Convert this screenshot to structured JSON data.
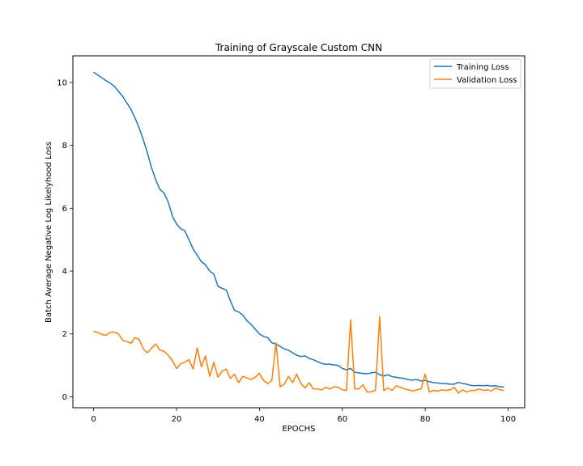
{
  "chart_data": {
    "type": "line",
    "title": "Training of Grayscale Custom CNN",
    "xlabel": "EPOCHS",
    "ylabel": "Batch Average Negative Log Likelyhood Loss",
    "xlim": [
      -5,
      104
    ],
    "ylim": [
      -0.35,
      10.85
    ],
    "xticks": [
      0,
      20,
      40,
      60,
      80,
      100
    ],
    "yticks": [
      0,
      2,
      4,
      6,
      8,
      10
    ],
    "grid": false,
    "legend_position": "top-right",
    "series": [
      {
        "name": "Training Loss",
        "color": "#1f77b4",
        "x": [
          0,
          1,
          2,
          3,
          4,
          5,
          6,
          7,
          8,
          9,
          10,
          11,
          12,
          13,
          14,
          15,
          16,
          17,
          18,
          19,
          20,
          21,
          22,
          23,
          24,
          25,
          26,
          27,
          28,
          29,
          30,
          31,
          32,
          33,
          34,
          35,
          36,
          37,
          38,
          39,
          40,
          41,
          42,
          43,
          44,
          45,
          46,
          47,
          48,
          49,
          50,
          51,
          52,
          53,
          54,
          55,
          56,
          57,
          58,
          59,
          60,
          61,
          62,
          63,
          64,
          65,
          66,
          67,
          68,
          69,
          70,
          71,
          72,
          73,
          74,
          75,
          76,
          77,
          78,
          79,
          80,
          81,
          82,
          83,
          84,
          85,
          86,
          87,
          88,
          89,
          90,
          91,
          92,
          93,
          94,
          95,
          96,
          97,
          98,
          99
        ],
        "values": [
          10.33,
          10.24,
          10.15,
          10.06,
          9.98,
          9.88,
          9.72,
          9.56,
          9.35,
          9.15,
          8.87,
          8.55,
          8.18,
          7.75,
          7.28,
          6.9,
          6.6,
          6.48,
          6.2,
          5.75,
          5.5,
          5.35,
          5.28,
          5.0,
          4.7,
          4.5,
          4.3,
          4.2,
          4.0,
          3.9,
          3.52,
          3.45,
          3.4,
          3.05,
          2.75,
          2.7,
          2.6,
          2.42,
          2.3,
          2.15,
          2.0,
          1.92,
          1.88,
          1.72,
          1.68,
          1.6,
          1.52,
          1.48,
          1.4,
          1.32,
          1.28,
          1.3,
          1.22,
          1.18,
          1.12,
          1.06,
          1.03,
          1.04,
          1.01,
          1.0,
          0.9,
          0.86,
          0.9,
          0.78,
          0.76,
          0.74,
          0.73,
          0.76,
          0.78,
          0.7,
          0.66,
          0.7,
          0.64,
          0.62,
          0.6,
          0.58,
          0.54,
          0.53,
          0.55,
          0.5,
          0.52,
          0.48,
          0.45,
          0.44,
          0.42,
          0.42,
          0.4,
          0.4,
          0.46,
          0.42,
          0.4,
          0.36,
          0.35,
          0.36,
          0.35,
          0.36,
          0.34,
          0.35,
          0.32,
          0.31
        ]
      },
      {
        "name": "Validation Loss",
        "color": "#ff7f0e",
        "x": [
          0,
          1,
          2,
          3,
          4,
          5,
          6,
          7,
          8,
          9,
          10,
          11,
          12,
          13,
          14,
          15,
          16,
          17,
          18,
          19,
          20,
          21,
          22,
          23,
          24,
          25,
          26,
          27,
          28,
          29,
          30,
          31,
          32,
          33,
          34,
          35,
          36,
          37,
          38,
          39,
          40,
          41,
          42,
          43,
          44,
          45,
          46,
          47,
          48,
          49,
          50,
          51,
          52,
          53,
          54,
          55,
          56,
          57,
          58,
          59,
          60,
          61,
          62,
          63,
          64,
          65,
          66,
          67,
          68,
          69,
          70,
          71,
          72,
          73,
          74,
          75,
          76,
          77,
          78,
          79,
          80,
          81,
          82,
          83,
          84,
          85,
          86,
          87,
          88,
          89,
          90,
          91,
          92,
          93,
          94,
          95,
          96,
          97,
          98,
          99
        ],
        "values": [
          2.08,
          2.05,
          1.98,
          1.96,
          2.05,
          2.06,
          2.0,
          1.8,
          1.76,
          1.7,
          1.88,
          1.82,
          1.52,
          1.4,
          1.55,
          1.68,
          1.48,
          1.45,
          1.32,
          1.15,
          0.9,
          1.05,
          1.1,
          1.18,
          0.88,
          1.55,
          0.95,
          1.3,
          0.65,
          1.1,
          0.62,
          0.82,
          0.88,
          0.58,
          0.72,
          0.45,
          0.65,
          0.6,
          0.55,
          0.62,
          0.75,
          0.52,
          0.42,
          0.52,
          1.72,
          0.32,
          0.4,
          0.65,
          0.45,
          0.72,
          0.42,
          0.28,
          0.45,
          0.25,
          0.25,
          0.22,
          0.3,
          0.25,
          0.32,
          0.3,
          0.22,
          0.2,
          2.45,
          0.25,
          0.25,
          0.38,
          0.15,
          0.16,
          0.2,
          2.55,
          0.2,
          0.28,
          0.2,
          0.35,
          0.3,
          0.25,
          0.22,
          0.18,
          0.22,
          0.25,
          0.72,
          0.15,
          0.2,
          0.18,
          0.22,
          0.2,
          0.22,
          0.3,
          0.12,
          0.22,
          0.15,
          0.2,
          0.2,
          0.25,
          0.2,
          0.22,
          0.18,
          0.28,
          0.22,
          0.2
        ]
      }
    ]
  }
}
